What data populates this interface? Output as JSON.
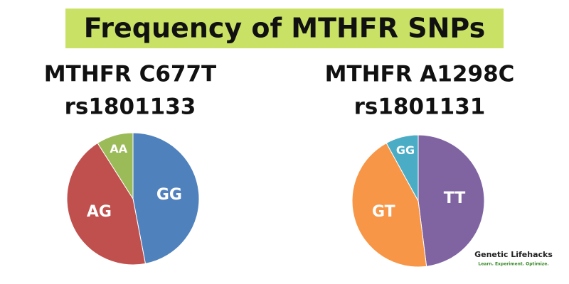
{
  "title": "Frequency of MTHFR SNPs",
  "chart_data": [
    {
      "type": "pie",
      "title": "MTHFR C677T",
      "subtitle": "rs1801133",
      "categories": [
        "GG",
        "AG",
        "AA"
      ],
      "values": [
        47,
        44,
        9
      ],
      "colors": [
        "#4f81bd",
        "#c0504d",
        "#9bbb59"
      ]
    },
    {
      "type": "pie",
      "title": "MTHFR A1298C",
      "subtitle": "rs1801131",
      "categories": [
        "TT",
        "GT",
        "GG"
      ],
      "values": [
        48,
        44,
        8
      ],
      "colors": [
        "#8064a2",
        "#f79646",
        "#4bacc6"
      ]
    }
  ],
  "logo": {
    "name": "Genetic Lifehacks",
    "tagline": "Learn. Experiment. Optimize."
  }
}
